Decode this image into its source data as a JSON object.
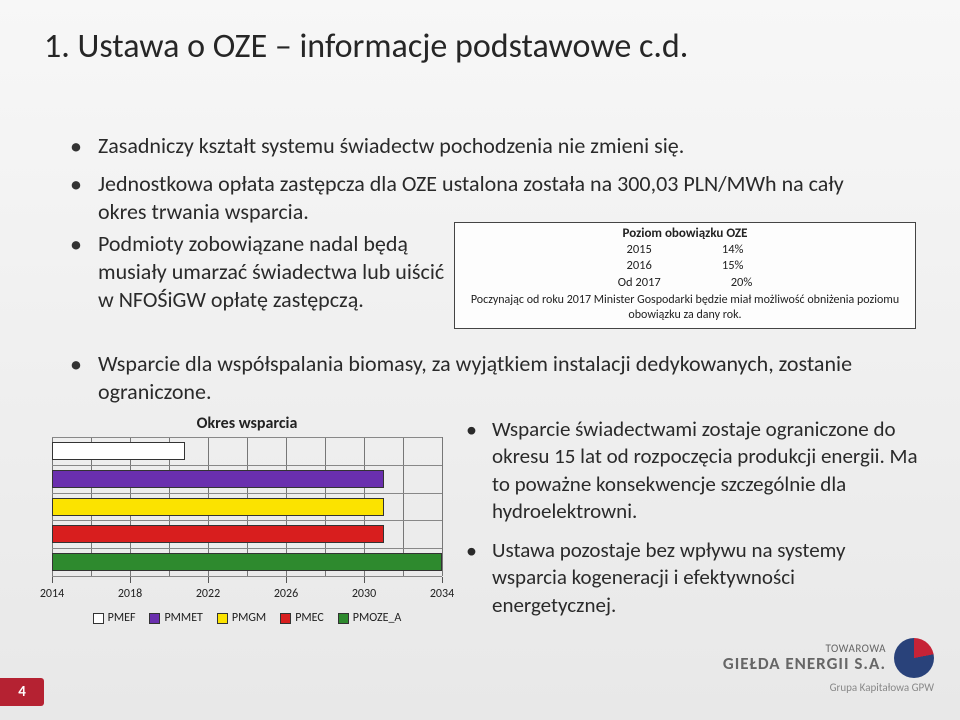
{
  "title": "1. Ustawa o OZE – informacje podstawowe c.d.",
  "bullets_top": [
    "Zasadniczy kształt systemu świadectw pochodzenia nie zmieni się.",
    "Jednostkowa opłata zastępcza dla OZE ustalona została na 300,03 PLN/MWh na cały okres trwania wsparcia."
  ],
  "bullet_left_sub": "Podmioty zobowiązane nadal będą musiały umarzać świadectwa lub uiścić w NFOŚiGW opłatę zastępczą.",
  "oze_table": {
    "header": "Poziom obowiązku OZE",
    "rows": [
      {
        "year": "2015",
        "pct": "14%"
      },
      {
        "year": "2016",
        "pct": "15%"
      },
      {
        "year": "Od 2017",
        "pct": "20%"
      }
    ],
    "note": "Poczynając od roku 2017 Minister Gospodarki będzie miał możliwość obniżenia poziomu obowiązku za dany rok."
  },
  "bullet_mid": "Wsparcie dla współspalania biomasy, za wyjątkiem instalacji dedykowanych, zostanie ograniczone.",
  "chart": {
    "title": "Okres wsparcia",
    "x_ticks": [
      2014,
      2018,
      2022,
      2026,
      2030,
      2034
    ],
    "x_min": 2014,
    "x_max": 2034,
    "grid_years": [
      2014,
      2016,
      2018,
      2020,
      2022,
      2024,
      2026,
      2028,
      2030,
      2032,
      2034
    ],
    "series": [
      {
        "name": "PMEF",
        "color": "#ffffff",
        "start": 2014,
        "end": 2020.8,
        "row": 0
      },
      {
        "name": "PMMET",
        "color": "#6a2fae",
        "start": 2014,
        "end": 2031.0,
        "row": 1
      },
      {
        "name": "PMGM",
        "color": "#fbe300",
        "start": 2014,
        "end": 2031.0,
        "row": 2
      },
      {
        "name": "PMEC",
        "color": "#d81e1e",
        "start": 2014,
        "end": 2031.0,
        "row": 3
      },
      {
        "name": "PMOZE_A",
        "color": "#2e8a2e",
        "start": 2014,
        "end": 2035.0,
        "row": 4
      }
    ],
    "row_count": 5
  },
  "bullets_right": [
    "Wsparcie świadectwami zostaje ograniczone do okresu 15 lat od rozpoczęcia produkcji energii. Ma to poważne konsekwencje szczególnie dla hydroelektrowni.",
    "Ustawa pozostaje bez wpływu na systemy wsparcia kogeneracji i efektywności energetycznej."
  ],
  "page_number": "4",
  "logo": {
    "line1": "TOWAROWA",
    "line2": "GIEŁDA ENERGII S.A.",
    "sub": "Grupa Kapitałowa GPW"
  }
}
